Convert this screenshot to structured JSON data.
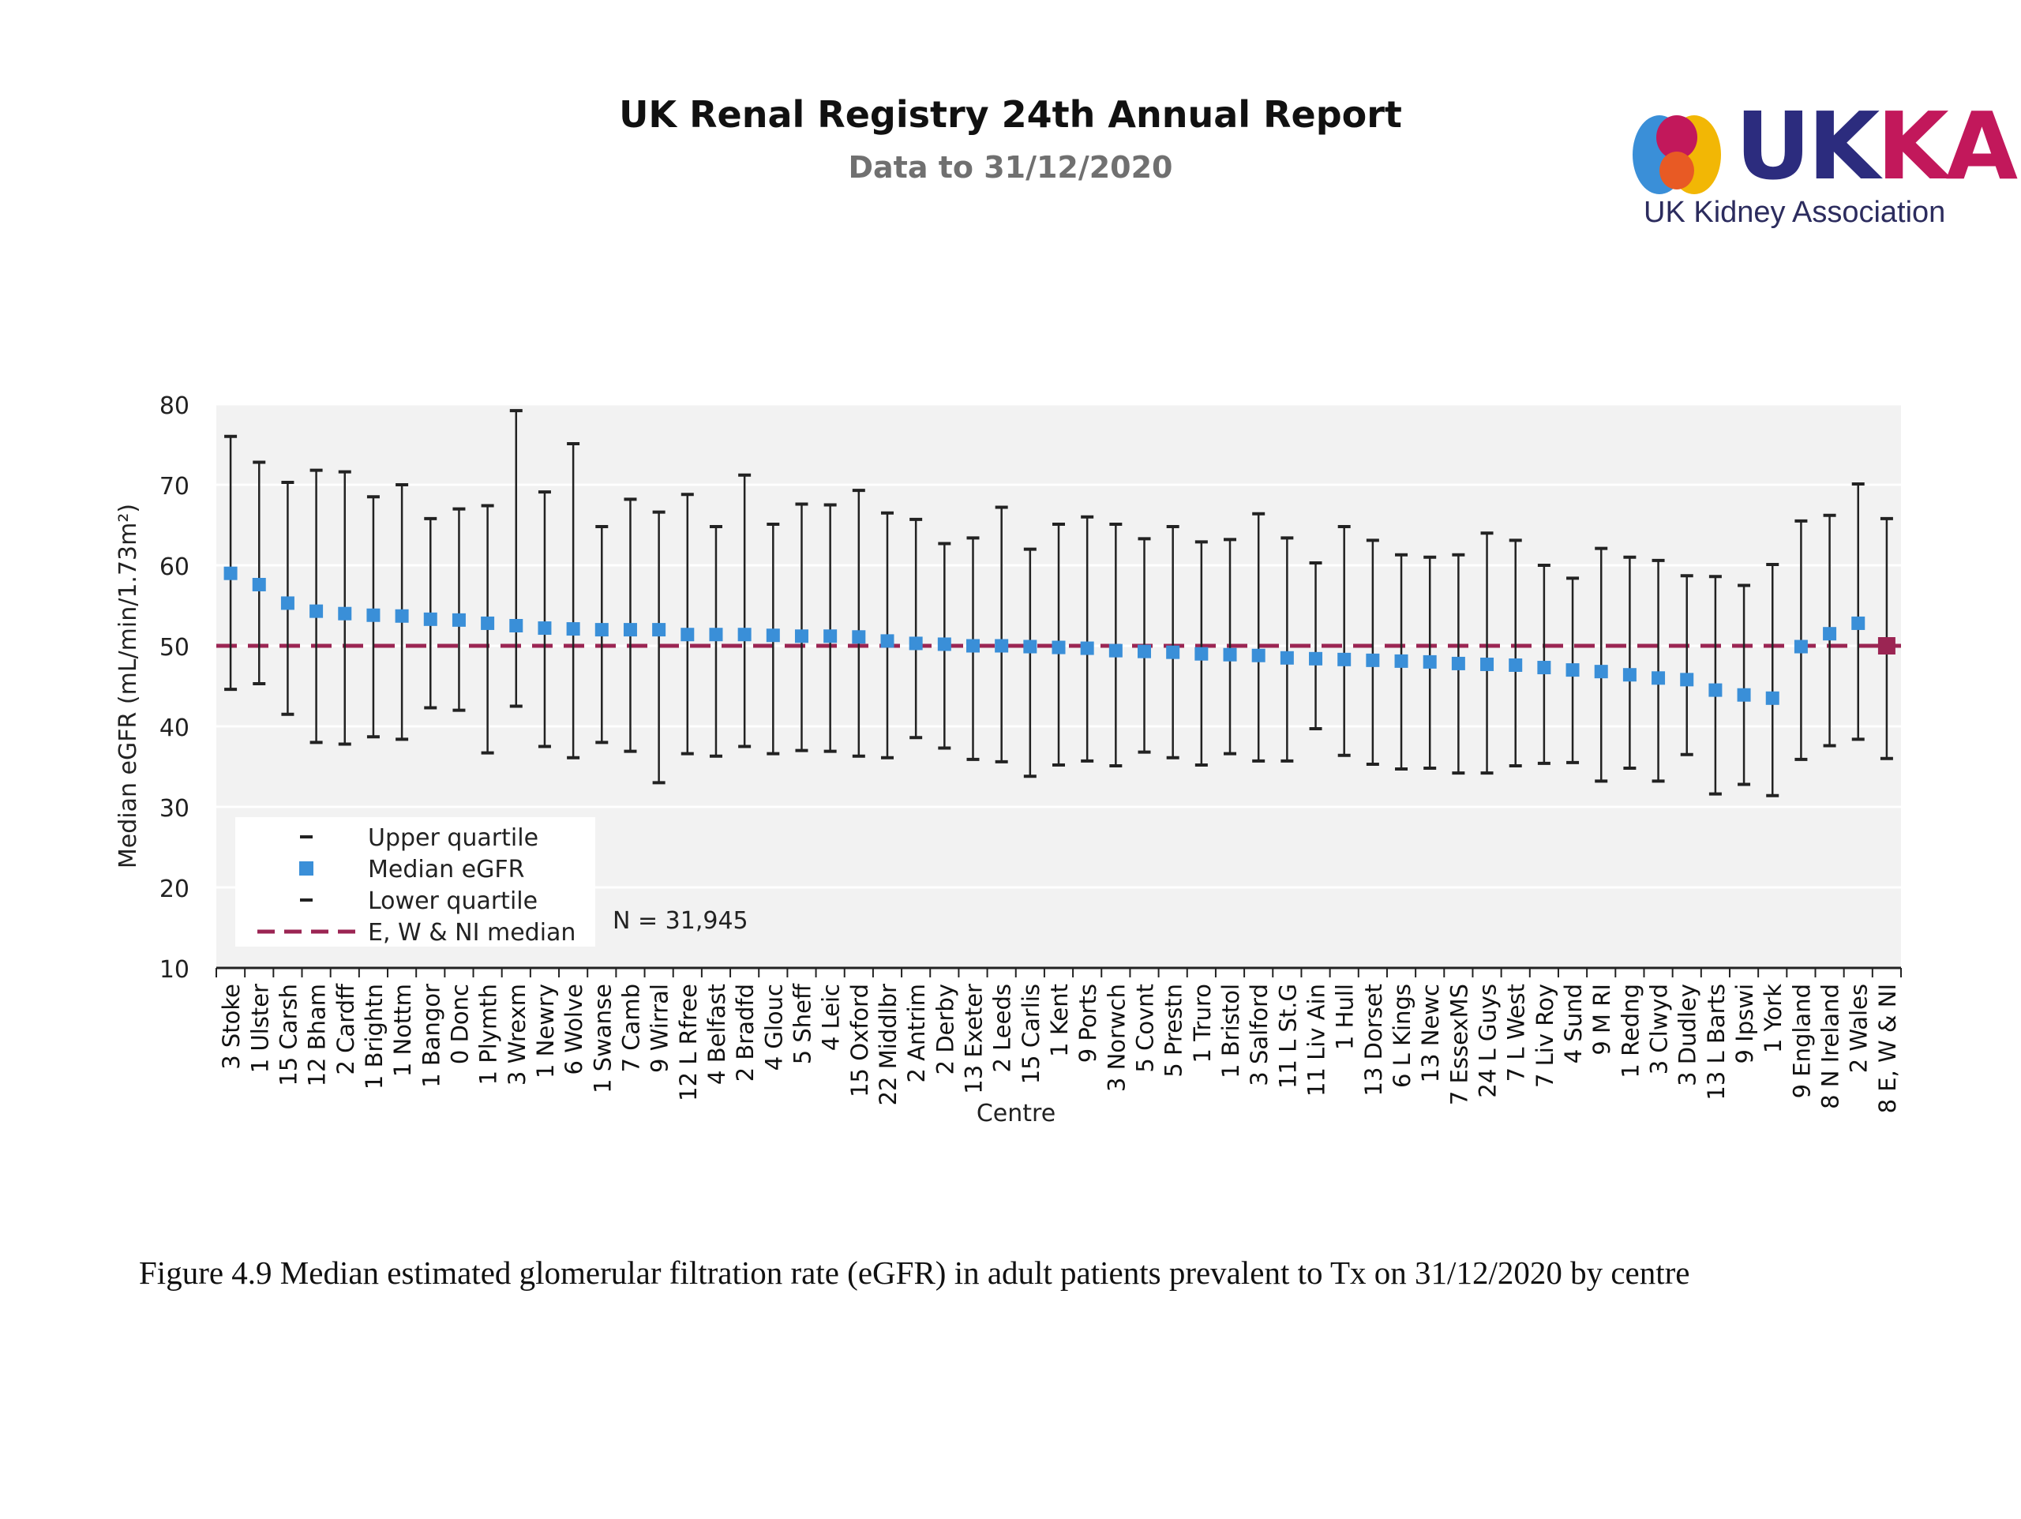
{
  "header": {
    "title": "UK Renal Registry 24th Annual Report",
    "subtitle": "Data to 31/12/2020"
  },
  "logo": {
    "wordmark": "UKKA",
    "wordmark_letters": [
      "UK",
      "KA"
    ],
    "name": "UK Kidney Association",
    "colors": {
      "navy": "#2c2c7e",
      "magenta": "#c2185b",
      "blue": "#3a8fd8",
      "yellow": "#f2b705",
      "orange": "#e85a24"
    }
  },
  "annotation": "N = 31,945",
  "caption": "Figure 4.9 Median estimated glomerular filtration rate (eGFR) in adult patients prevalent to Tx on 31/12/2020 by centre",
  "chart_data": {
    "type": "scatter",
    "title": "",
    "xlabel": "Centre",
    "ylabel": "Median eGFR (mL/min/1.73m²)",
    "ylim": [
      10,
      80
    ],
    "yticks": [
      10,
      20,
      30,
      40,
      50,
      60,
      70,
      80
    ],
    "grid": true,
    "legend_position": "bottom-left",
    "legend": [
      "Upper quartile",
      "Median eGFR",
      "Lower quartile",
      "E, W & NI median"
    ],
    "reference_line": {
      "name": "E, W & NI median",
      "value": 50,
      "color": "#9b2553"
    },
    "colors": {
      "median": "#3a8fd8",
      "highlight": "#9b2553",
      "whisker": "#222222",
      "plot_bg": "#f2f2f2",
      "grid": "#ffffff"
    },
    "highlight_category": "8 E, W & NI",
    "categories": [
      "3 Stoke",
      "1 Ulster",
      "15 Carsh",
      "12 Bham",
      "2 Cardff",
      "1 Brightn",
      "1 Nottm",
      "1 Bangor",
      "0 Donc",
      "1 Plymth",
      "3 Wrexm",
      "1 Newry",
      "6 Wolve",
      "1 Swanse",
      "7 Camb",
      "9 Wirral",
      "12 L Rfree",
      "4 Belfast",
      "2 Bradfd",
      "4 Glouc",
      "5 Sheff",
      "4 Leic",
      "15 Oxford",
      "22 Middlbr",
      "2 Antrim",
      "2 Derby",
      "13 Exeter",
      "2 Leeds",
      "15 Carlis",
      "1 Kent",
      "9 Ports",
      "3 Norwch",
      "5 Covnt",
      "5 Prestn",
      "1 Truro",
      "1 Bristol",
      "3 Salford",
      "11 L St.G",
      "11 Liv Ain",
      "1 Hull",
      "13 Dorset",
      "6 L Kings",
      "13 Newc",
      "7 EssexMS",
      "24 L Guys",
      "7 L West",
      "7 Liv Roy",
      "4 Sund",
      "9 M RI",
      "1 Redng",
      "3 Clwyd",
      "3 Dudley",
      "13 L Barts",
      "9 Ipswi",
      "1 York",
      "9 England",
      "8 N Ireland",
      "2 Wales",
      "8 E, W & NI"
    ],
    "series": [
      {
        "name": "Median eGFR",
        "values": [
          59,
          57.6,
          55.3,
          54.3,
          54,
          53.8,
          53.7,
          53.3,
          53.2,
          52.8,
          52.5,
          52.2,
          52.1,
          52,
          52,
          52,
          51.4,
          51.4,
          51.4,
          51.3,
          51.2,
          51.2,
          51.1,
          50.6,
          50.3,
          50.2,
          50,
          50,
          49.9,
          49.8,
          49.7,
          49.4,
          49.3,
          49.2,
          49,
          48.9,
          48.8,
          48.5,
          48.4,
          48.3,
          48.2,
          48.1,
          48,
          47.8,
          47.7,
          47.6,
          47.3,
          47,
          46.8,
          46.4,
          46,
          45.8,
          44.5,
          43.9,
          43.5,
          49.9,
          51.5,
          52.8,
          50
        ]
      },
      {
        "name": "Upper quartile",
        "values": [
          76,
          72.8,
          70.3,
          71.8,
          71.6,
          68.5,
          70,
          65.8,
          67,
          67.4,
          79.2,
          69.1,
          75.1,
          64.8,
          68.2,
          66.6,
          68.8,
          64.8,
          71.2,
          65.1,
          67.6,
          67.5,
          69.3,
          66.5,
          65.7,
          62.7,
          63.4,
          67.2,
          62,
          65.1,
          66,
          65.1,
          63.3,
          64.8,
          62.9,
          63.2,
          66.4,
          63.4,
          60.3,
          64.8,
          63.1,
          61.3,
          61,
          61.3,
          64,
          63.1,
          60,
          58.4,
          62.1,
          61,
          60.6,
          58.7,
          58.6,
          57.5,
          60.1,
          65.5,
          66.2,
          70.1,
          65.8
        ]
      },
      {
        "name": "Lower quartile",
        "values": [
          44.6,
          45.3,
          41.5,
          38,
          37.8,
          38.7,
          38.4,
          42.3,
          42,
          36.7,
          42.5,
          37.5,
          36.1,
          38,
          36.9,
          33,
          36.6,
          36.3,
          37.5,
          36.6,
          37,
          36.9,
          36.3,
          36.1,
          38.6,
          37.3,
          35.9,
          35.6,
          33.8,
          35.2,
          35.7,
          35.1,
          36.8,
          36.1,
          35.2,
          36.6,
          35.7,
          35.7,
          39.7,
          36.4,
          35.3,
          34.7,
          34.8,
          34.2,
          34.2,
          35.1,
          35.4,
          35.5,
          33.2,
          34.8,
          33.2,
          36.5,
          31.6,
          32.8,
          31.4,
          35.9,
          37.6,
          38.4,
          36
        ]
      }
    ]
  }
}
